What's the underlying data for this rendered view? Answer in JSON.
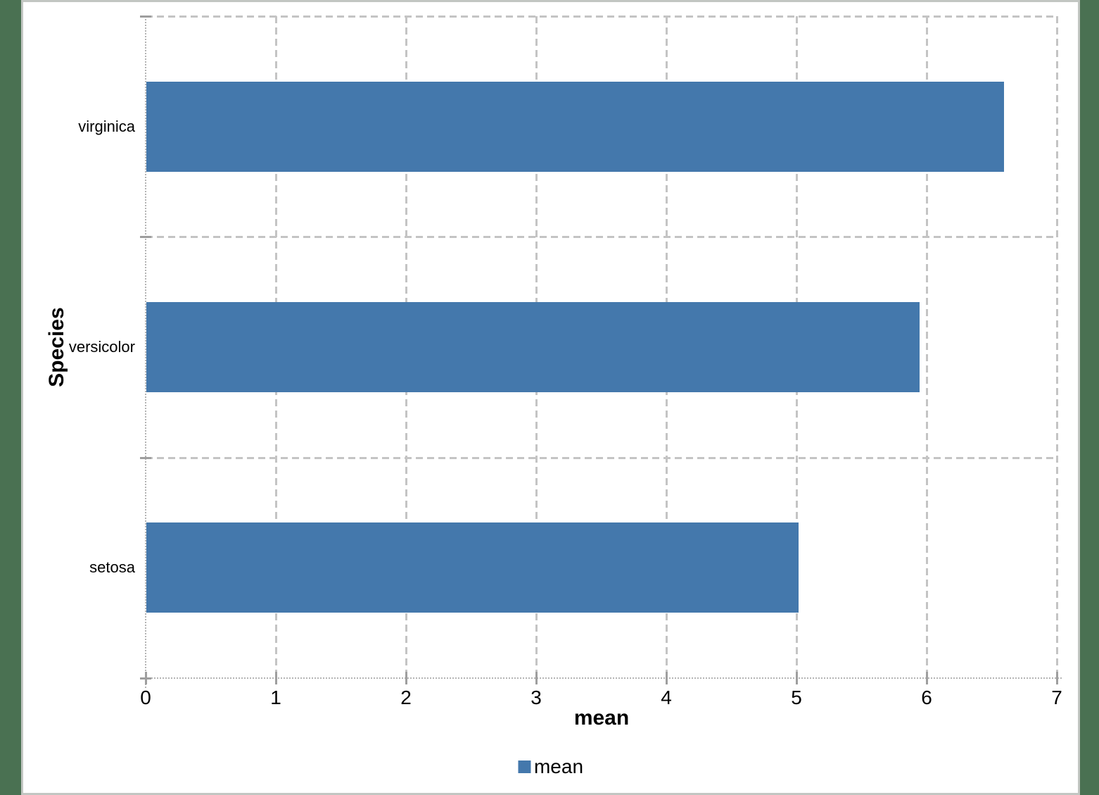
{
  "page": {
    "background_color": "#4a7152",
    "canvas_background": "#ffffff",
    "canvas_border_color": "#c2c6c2"
  },
  "chart_data": {
    "type": "bar",
    "orientation": "horizontal",
    "title": "",
    "xlabel": "mean",
    "ylabel": "Species",
    "categories_top_to_bottom": [
      "virginica",
      "versicolor",
      "setosa"
    ],
    "series": [
      {
        "name": "mean",
        "values_top_to_bottom": [
          6.59,
          5.94,
          5.01
        ],
        "color": "#4478ac"
      }
    ],
    "xlim": [
      0,
      7
    ],
    "xtick_labels": [
      "0",
      "1",
      "2",
      "3",
      "4",
      "5",
      "6",
      "7"
    ],
    "grid": "dashed",
    "gridline_color": "#c4c4c4",
    "axis_line_color": "#b4b4b4",
    "legend_position": "bottom-center",
    "legend": [
      {
        "label": "mean",
        "color": "#4478ac"
      }
    ]
  }
}
